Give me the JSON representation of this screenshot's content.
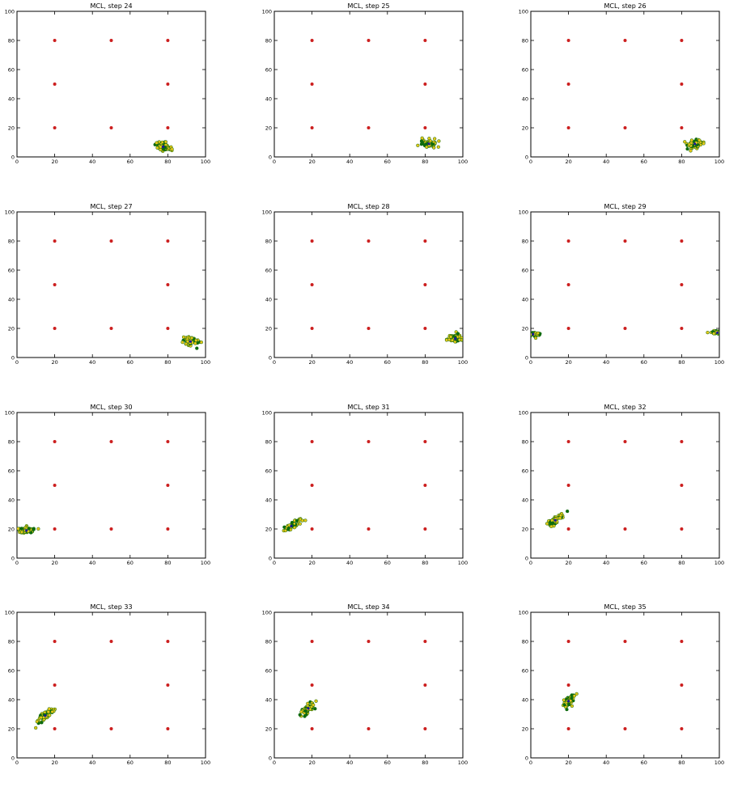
{
  "colors": {
    "landmark": "#cc1f1f",
    "particle_fill": "#e6c619",
    "particle_edge": "#0e6b0e",
    "outlier": "#0e6b0e",
    "pose": "#1a1a99"
  },
  "chart_data": [
    {
      "type": "scatter",
      "title": "MCL, step 24",
      "xlim": [
        0,
        100
      ],
      "ylim": [
        0,
        100
      ],
      "x_ticks": [
        0,
        20,
        40,
        60,
        80,
        100
      ],
      "y_ticks": [
        0,
        20,
        40,
        60,
        80,
        100
      ],
      "landmarks": [
        [
          20,
          20
        ],
        [
          50,
          20
        ],
        [
          80,
          20
        ],
        [
          20,
          50
        ],
        [
          80,
          50
        ],
        [
          20,
          80
        ],
        [
          50,
          80
        ],
        [
          80,
          80
        ]
      ],
      "particle_clouds": [
        {
          "center": [
            77.5,
            7
          ],
          "spread": [
            2.5,
            4
          ],
          "angle": 65
        }
      ]
    },
    {
      "type": "scatter",
      "title": "MCL, step 25",
      "xlim": [
        0,
        100
      ],
      "ylim": [
        0,
        100
      ],
      "x_ticks": [
        0,
        20,
        40,
        60,
        80,
        100
      ],
      "y_ticks": [
        0,
        20,
        40,
        60,
        80,
        100
      ],
      "landmarks": [
        [
          20,
          20
        ],
        [
          50,
          20
        ],
        [
          80,
          20
        ],
        [
          20,
          50
        ],
        [
          80,
          50
        ],
        [
          20,
          80
        ],
        [
          50,
          80
        ],
        [
          80,
          80
        ]
      ],
      "particle_clouds": [
        {
          "center": [
            82,
            9
          ],
          "spread": [
            2.5,
            4
          ],
          "angle": 80
        }
      ]
    },
    {
      "type": "scatter",
      "title": "MCL, step 26",
      "xlim": [
        0,
        100
      ],
      "ylim": [
        0,
        100
      ],
      "x_ticks": [
        0,
        20,
        40,
        60,
        80,
        100
      ],
      "y_ticks": [
        0,
        20,
        40,
        60,
        80,
        100
      ],
      "landmarks": [
        [
          20,
          20
        ],
        [
          50,
          20
        ],
        [
          80,
          20
        ],
        [
          20,
          50
        ],
        [
          80,
          50
        ],
        [
          20,
          80
        ],
        [
          50,
          80
        ],
        [
          80,
          80
        ]
      ],
      "particle_clouds": [
        {
          "center": [
            87,
            9
          ],
          "spread": [
            2.5,
            3.5
          ],
          "angle": 90
        }
      ]
    },
    {
      "type": "scatter",
      "title": "MCL, step 27",
      "xlim": [
        0,
        100
      ],
      "ylim": [
        0,
        100
      ],
      "x_ticks": [
        0,
        20,
        40,
        60,
        80,
        100
      ],
      "y_ticks": [
        0,
        20,
        40,
        60,
        80,
        100
      ],
      "landmarks": [
        [
          20,
          20
        ],
        [
          50,
          20
        ],
        [
          80,
          20
        ],
        [
          20,
          50
        ],
        [
          80,
          50
        ],
        [
          20,
          80
        ],
        [
          50,
          80
        ],
        [
          80,
          80
        ]
      ],
      "particle_clouds": [
        {
          "center": [
            92,
            11
          ],
          "spread": [
            2.5,
            4
          ],
          "angle": 90
        }
      ]
    },
    {
      "type": "scatter",
      "title": "MCL, step 28",
      "xlim": [
        0,
        100
      ],
      "ylim": [
        0,
        100
      ],
      "x_ticks": [
        0,
        20,
        40,
        60,
        80,
        100
      ],
      "y_ticks": [
        0,
        20,
        40,
        60,
        80,
        100
      ],
      "landmarks": [
        [
          20,
          20
        ],
        [
          50,
          20
        ],
        [
          80,
          20
        ],
        [
          20,
          50
        ],
        [
          80,
          50
        ],
        [
          20,
          80
        ],
        [
          50,
          80
        ],
        [
          80,
          80
        ]
      ],
      "particle_clouds": [
        {
          "center": [
            96,
            13
          ],
          "spread": [
            2.5,
            4
          ],
          "angle": 95
        }
      ]
    },
    {
      "type": "scatter",
      "title": "MCL, step 29",
      "xlim": [
        0,
        100
      ],
      "ylim": [
        0,
        100
      ],
      "x_ticks": [
        0,
        20,
        40,
        60,
        80,
        100
      ],
      "y_ticks": [
        0,
        20,
        40,
        60,
        80,
        100
      ],
      "landmarks": [
        [
          20,
          20
        ],
        [
          50,
          20
        ],
        [
          80,
          20
        ],
        [
          20,
          50
        ],
        [
          80,
          50
        ],
        [
          20,
          80
        ],
        [
          50,
          80
        ],
        [
          80,
          80
        ]
      ],
      "particle_clouds": [
        {
          "center": [
            1.2,
            16
          ],
          "spread": [
            1.2,
            3
          ],
          "angle": 90
        },
        {
          "center": [
            99,
            17
          ],
          "spread": [
            1,
            3
          ],
          "angle": 90
        }
      ]
    },
    {
      "type": "scatter",
      "title": "MCL, step 30",
      "xlim": [
        0,
        100
      ],
      "ylim": [
        0,
        100
      ],
      "x_ticks": [
        0,
        20,
        40,
        60,
        80,
        100
      ],
      "y_ticks": [
        0,
        20,
        40,
        60,
        80,
        100
      ],
      "landmarks": [
        [
          20,
          20
        ],
        [
          50,
          20
        ],
        [
          80,
          20
        ],
        [
          20,
          50
        ],
        [
          80,
          50
        ],
        [
          20,
          80
        ],
        [
          50,
          80
        ],
        [
          80,
          80
        ]
      ],
      "particle_clouds": [
        {
          "center": [
            5,
            19
          ],
          "spread": [
            2,
            4
          ],
          "angle": 100
        }
      ]
    },
    {
      "type": "scatter",
      "title": "MCL, step 31",
      "xlim": [
        0,
        100
      ],
      "ylim": [
        0,
        100
      ],
      "x_ticks": [
        0,
        20,
        40,
        60,
        80,
        100
      ],
      "y_ticks": [
        0,
        20,
        40,
        60,
        80,
        100
      ],
      "landmarks": [
        [
          20,
          20
        ],
        [
          50,
          20
        ],
        [
          80,
          20
        ],
        [
          20,
          50
        ],
        [
          80,
          50
        ],
        [
          20,
          80
        ],
        [
          50,
          80
        ],
        [
          80,
          80
        ]
      ],
      "particle_clouds": [
        {
          "center": [
            9,
            22
          ],
          "spread": [
            1.8,
            4.5
          ],
          "angle": 125
        }
      ]
    },
    {
      "type": "scatter",
      "title": "MCL, step 32",
      "xlim": [
        0,
        100
      ],
      "ylim": [
        0,
        100
      ],
      "x_ticks": [
        0,
        20,
        40,
        60,
        80,
        100
      ],
      "y_ticks": [
        0,
        20,
        40,
        60,
        80,
        100
      ],
      "landmarks": [
        [
          20,
          20
        ],
        [
          50,
          20
        ],
        [
          80,
          20
        ],
        [
          20,
          50
        ],
        [
          80,
          50
        ],
        [
          20,
          80
        ],
        [
          50,
          80
        ],
        [
          80,
          80
        ]
      ],
      "particle_clouds": [
        {
          "center": [
            13,
            26
          ],
          "spread": [
            1.8,
            5
          ],
          "angle": 135
        }
      ]
    },
    {
      "type": "scatter",
      "title": "MCL, step 33",
      "xlim": [
        0,
        100
      ],
      "ylim": [
        0,
        100
      ],
      "x_ticks": [
        0,
        20,
        40,
        60,
        80,
        100
      ],
      "y_ticks": [
        0,
        20,
        40,
        60,
        80,
        100
      ],
      "landmarks": [
        [
          20,
          20
        ],
        [
          50,
          20
        ],
        [
          80,
          20
        ],
        [
          20,
          50
        ],
        [
          80,
          50
        ],
        [
          20,
          80
        ],
        [
          50,
          80
        ],
        [
          80,
          80
        ]
      ],
      "particle_clouds": [
        {
          "center": [
            15,
            29
          ],
          "spread": [
            1.8,
            5
          ],
          "angle": 140
        }
      ]
    },
    {
      "type": "scatter",
      "title": "MCL, step 34",
      "xlim": [
        0,
        100
      ],
      "ylim": [
        0,
        100
      ],
      "x_ticks": [
        0,
        20,
        40,
        60,
        80,
        100
      ],
      "y_ticks": [
        0,
        20,
        40,
        60,
        80,
        100
      ],
      "landmarks": [
        [
          20,
          20
        ],
        [
          50,
          20
        ],
        [
          80,
          20
        ],
        [
          20,
          50
        ],
        [
          80,
          50
        ],
        [
          20,
          80
        ],
        [
          50,
          80
        ],
        [
          80,
          80
        ]
      ],
      "particle_clouds": [
        {
          "center": [
            18,
            34
          ],
          "spread": [
            1.8,
            4.5
          ],
          "angle": 145
        }
      ]
    },
    {
      "type": "scatter",
      "title": "MCL, step 35",
      "xlim": [
        0,
        100
      ],
      "ylim": [
        0,
        100
      ],
      "x_ticks": [
        0,
        20,
        40,
        60,
        80,
        100
      ],
      "y_ticks": [
        0,
        20,
        40,
        60,
        80,
        100
      ],
      "landmarks": [
        [
          20,
          20
        ],
        [
          50,
          20
        ],
        [
          80,
          20
        ],
        [
          20,
          50
        ],
        [
          80,
          50
        ],
        [
          20,
          80
        ],
        [
          50,
          80
        ],
        [
          80,
          80
        ]
      ],
      "particle_clouds": [
        {
          "center": [
            20,
            39
          ],
          "spread": [
            1.8,
            4
          ],
          "angle": 150
        }
      ]
    }
  ]
}
